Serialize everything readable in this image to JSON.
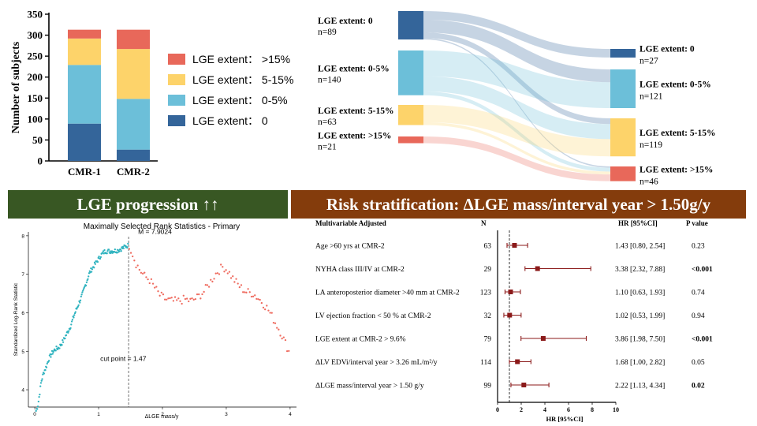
{
  "stacked_bar": {
    "type": "bar",
    "ylabel": "Number of subjects",
    "ylim": [
      0,
      350
    ],
    "yticks": [
      0,
      50,
      100,
      150,
      200,
      250,
      300,
      350
    ],
    "categories": [
      "CMR-1",
      "CMR-2"
    ],
    "series": [
      {
        "name": "LGE extent： 0",
        "color": "#34659a",
        "values": [
          89,
          27
        ]
      },
      {
        "name": "LGE extent： 0-5%",
        "color": "#6cbfd9",
        "values": [
          140,
          121
        ]
      },
      {
        "name": "LGE extent： 5-15%",
        "color": "#fdd36a",
        "values": [
          63,
          119
        ]
      },
      {
        "name": "LGE extent： >15%",
        "color": "#e8685a",
        "values": [
          21,
          46
        ]
      }
    ],
    "legend_order": [
      "LGE extent： >15%",
      "LGE extent： 5-15%",
      "LGE extent： 0-5%",
      "LGE extent： 0"
    ]
  },
  "sankey": {
    "left": [
      {
        "label": "LGE extent: 0",
        "n": "n=89",
        "value": 89,
        "color": "#34659a"
      },
      {
        "label": "LGE extent: 0-5%",
        "n": "n=140",
        "value": 140,
        "color": "#6cbfd9"
      },
      {
        "label": "LGE extent: 5-15%",
        "n": "n=63",
        "value": 63,
        "color": "#fdd36a"
      },
      {
        "label": "LGE extent: >15%",
        "n": "n=21",
        "value": 21,
        "color": "#e8685a"
      }
    ],
    "right": [
      {
        "label": "LGE extent: 0",
        "n": "n=27",
        "value": 27,
        "color": "#34659a"
      },
      {
        "label": "LGE extent: 0-5%",
        "n": "n=121",
        "value": 121,
        "color": "#6cbfd9"
      },
      {
        "label": "LGE extent: 5-15%",
        "n": "n=119",
        "value": 119,
        "color": "#fdd36a"
      },
      {
        "label": "LGE extent: >15%",
        "n": "n=46",
        "value": 46,
        "color": "#e8685a"
      }
    ],
    "flows": [
      {
        "from": 0,
        "to": 0,
        "value": 27
      },
      {
        "from": 0,
        "to": 1,
        "value": 40
      },
      {
        "from": 0,
        "to": 2,
        "value": 18
      },
      {
        "from": 0,
        "to": 3,
        "value": 4
      },
      {
        "from": 1,
        "to": 1,
        "value": 81
      },
      {
        "from": 1,
        "to": 2,
        "value": 47
      },
      {
        "from": 1,
        "to": 3,
        "value": 12
      },
      {
        "from": 2,
        "to": 2,
        "value": 54
      },
      {
        "from": 2,
        "to": 3,
        "value": 9
      },
      {
        "from": 3,
        "to": 3,
        "value": 21
      }
    ]
  },
  "banners": {
    "left": "LGE progression ↑↑",
    "right": "Risk stratification: ΔLGE mass/interval year > 1.50g/y"
  },
  "maxstat": {
    "type": "scatter",
    "title": "Maximally Selected Rank Statistics - Primary",
    "xlabel": "ΔLGE mass/y",
    "ylabel": "Standardized Log-Rank Statistic",
    "xlim": [
      -0.1,
      4.1
    ],
    "ylim": [
      3.55,
      8.1
    ],
    "xticks": [
      0,
      1,
      2,
      3,
      4
    ],
    "yticks": [
      4,
      5,
      6,
      7,
      8
    ],
    "cutpoint": 1.47,
    "cutpoint_label": "cut point = 1.47",
    "max_label": "M = 7.9024",
    "below_color": "#2fb3bf",
    "above_color": "#ef6b5f",
    "curve_below": [
      [
        0.02,
        3.45
      ],
      [
        0.05,
        3.6
      ],
      [
        0.08,
        3.95
      ],
      [
        0.1,
        4.2
      ],
      [
        0.14,
        4.45
      ],
      [
        0.18,
        4.6
      ],
      [
        0.22,
        4.8
      ],
      [
        0.27,
        4.95
      ],
      [
        0.32,
        5.05
      ],
      [
        0.38,
        5.1
      ],
      [
        0.44,
        5.25
      ],
      [
        0.5,
        5.45
      ],
      [
        0.56,
        5.65
      ],
      [
        0.62,
        5.95
      ],
      [
        0.68,
        6.2
      ],
      [
        0.74,
        6.45
      ],
      [
        0.8,
        6.75
      ],
      [
        0.86,
        7.05
      ],
      [
        0.92,
        7.2
      ],
      [
        0.98,
        7.35
      ],
      [
        1.04,
        7.5
      ],
      [
        1.1,
        7.6
      ],
      [
        1.2,
        7.6
      ],
      [
        1.3,
        7.62
      ],
      [
        1.4,
        7.7
      ],
      [
        1.46,
        7.75
      ]
    ],
    "curve_above": [
      [
        1.48,
        7.75
      ],
      [
        1.52,
        7.6
      ],
      [
        1.58,
        7.3
      ],
      [
        1.65,
        7.1
      ],
      [
        1.72,
        6.95
      ],
      [
        1.8,
        6.85
      ],
      [
        1.88,
        6.65
      ],
      [
        1.96,
        6.45
      ],
      [
        2.05,
        6.35
      ],
      [
        2.15,
        6.3
      ],
      [
        2.25,
        6.3
      ],
      [
        2.35,
        6.35
      ],
      [
        2.45,
        6.3
      ],
      [
        2.55,
        6.4
      ],
      [
        2.65,
        6.55
      ],
      [
        2.75,
        6.8
      ],
      [
        2.85,
        7.05
      ],
      [
        2.95,
        7.2
      ],
      [
        3.02,
        7.1
      ],
      [
        3.1,
        6.9
      ],
      [
        3.2,
        6.7
      ],
      [
        3.3,
        6.55
      ],
      [
        3.42,
        6.5
      ],
      [
        3.55,
        6.3
      ],
      [
        3.65,
        6.1
      ],
      [
        3.75,
        5.8
      ],
      [
        3.85,
        5.5
      ],
      [
        3.93,
        5.2
      ],
      [
        3.98,
        5.0
      ]
    ]
  },
  "forest": {
    "type": "forest",
    "header_label": "Multivariable Adjusted",
    "header_n": "N",
    "header_hr": "HR [95%CI]",
    "header_p": "P value",
    "xlabel": "HR [95%CI]",
    "xlim": [
      0,
      10
    ],
    "xticks": [
      0,
      2,
      4,
      6,
      8,
      10
    ],
    "reference": 1,
    "rows": [
      {
        "label": "Age >60 yrs at CMR-2",
        "n": "63",
        "hr": 1.43,
        "lo": 0.8,
        "hi": 2.54,
        "hr_text": "1.43 [0.80, 2.54]",
        "p": "0.23",
        "bold": false
      },
      {
        "label": "NYHA class III/IV at CMR-2",
        "n": "29",
        "hr": 3.38,
        "lo": 2.32,
        "hi": 7.88,
        "hr_text": "3.38 [2.32, 7.88]",
        "p": "<0.001",
        "bold": true
      },
      {
        "label": "LA anteroposterior diameter >40 mm at CMR-2",
        "n": "123",
        "hr": 1.1,
        "lo": 0.63,
        "hi": 1.93,
        "hr_text": "1.10 [0.63, 1.93]",
        "p": "0.74",
        "bold": false
      },
      {
        "label": "LV ejection fraction < 50 % at CMR-2",
        "n": "32",
        "hr": 1.02,
        "lo": 0.53,
        "hi": 1.99,
        "hr_text": "1.02 [0.53, 1.99]",
        "p": "0.94",
        "bold": false
      },
      {
        "label": "LGE extent at CMR-2 > 9.6%",
        "n": "79",
        "hr": 3.86,
        "lo": 1.98,
        "hi": 7.5,
        "hr_text": "3.86 [1.98, 7.50]",
        "p": "<0.001",
        "bold": true
      },
      {
        "label": "ΔLV EDVi/interval year > 3.26 mL/m²/y",
        "n": "114",
        "hr": 1.68,
        "lo": 1.0,
        "hi": 2.82,
        "hr_text": "1.68 [1.00, 2.82]",
        "p": "0.05",
        "bold": false
      },
      {
        "label": "ΔLGE mass/interval year > 1.50 g/y",
        "n": "99",
        "hr": 2.22,
        "lo": 1.13,
        "hi": 4.34,
        "hr_text": "2.22 [1.13, 4.34]",
        "p": "0.02",
        "bold": true
      }
    ]
  }
}
